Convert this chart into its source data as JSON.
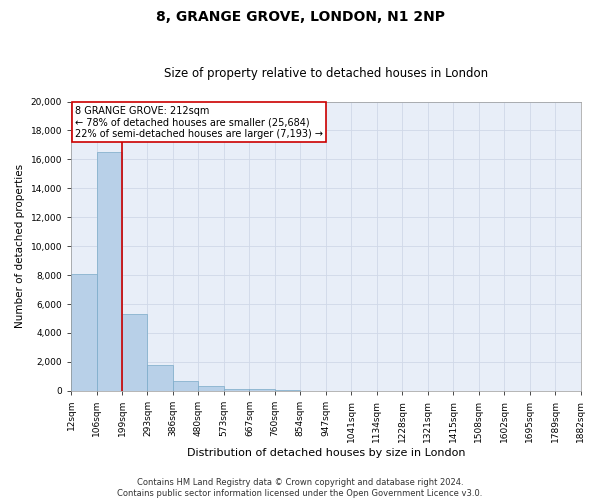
{
  "title": "8, GRANGE GROVE, LONDON, N1 2NP",
  "subtitle": "Size of property relative to detached houses in London",
  "xlabel": "Distribution of detached houses by size in London",
  "ylabel": "Number of detached properties",
  "bar_values": [
    8100,
    16500,
    5300,
    1800,
    700,
    300,
    150,
    100,
    50,
    20,
    10,
    5,
    3,
    2,
    1,
    1,
    0,
    0,
    0,
    0
  ],
  "bin_labels": [
    "12sqm",
    "106sqm",
    "199sqm",
    "293sqm",
    "386sqm",
    "480sqm",
    "573sqm",
    "667sqm",
    "760sqm",
    "854sqm",
    "947sqm",
    "1041sqm",
    "1134sqm",
    "1228sqm",
    "1321sqm",
    "1415sqm",
    "1508sqm",
    "1602sqm",
    "1695sqm",
    "1789sqm",
    "1882sqm"
  ],
  "bar_color": "#b8d0e8",
  "bar_edge_color": "#7aaac8",
  "vline_color": "#cc0000",
  "annotation_text": "8 GRANGE GROVE: 212sqm\n← 78% of detached houses are smaller (25,684)\n22% of semi-detached houses are larger (7,193) →",
  "annotation_box_facecolor": "#ffffff",
  "annotation_box_edgecolor": "#cc0000",
  "ylim": [
    0,
    20000
  ],
  "yticks": [
    0,
    2000,
    4000,
    6000,
    8000,
    10000,
    12000,
    14000,
    16000,
    18000,
    20000
  ],
  "grid_color": "#d0d8e8",
  "background_color": "#e8eef8",
  "fig_facecolor": "#ffffff",
  "title_fontsize": 10,
  "subtitle_fontsize": 8.5,
  "xlabel_fontsize": 8,
  "ylabel_fontsize": 7.5,
  "tick_fontsize": 6.5,
  "annotation_fontsize": 7,
  "footer_text": "Contains HM Land Registry data © Crown copyright and database right 2024.\nContains public sector information licensed under the Open Government Licence v3.0.",
  "footer_fontsize": 6
}
